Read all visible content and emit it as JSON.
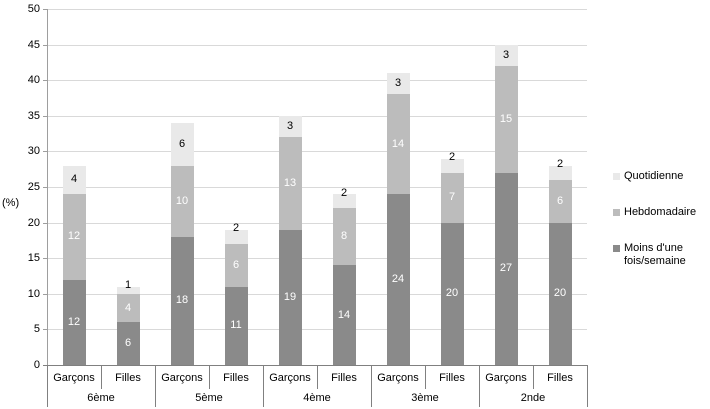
{
  "chart_data": {
    "type": "bar",
    "stacked": true,
    "ylabel": "(%)",
    "ylim": [
      0,
      50
    ],
    "yticks": [
      0,
      5,
      10,
      15,
      20,
      25,
      30,
      35,
      40,
      45,
      50
    ],
    "grid": true,
    "legend_position": "right",
    "groups": [
      "6ème",
      "5ème",
      "4ème",
      "3ème",
      "2nde"
    ],
    "sub_categories": [
      "Garçons",
      "Filles"
    ],
    "bar_columns": [
      "6ème Garçons",
      "6ème Filles",
      "5ème Garçons",
      "5ème Filles",
      "4ème Garçons",
      "4ème Filles",
      "3ème Garçons",
      "3ème Filles",
      "2nde Garçons",
      "2nde Filles"
    ],
    "series": [
      {
        "name": "Moins d'une fois/semaine",
        "color": "#8a8a8a",
        "label_color": "#ffffff",
        "values": [
          12,
          6,
          18,
          11,
          19,
          14,
          24,
          20,
          27,
          20
        ]
      },
      {
        "name": "Hebdomadaire",
        "color": "#bcbcbc",
        "label_color": "#ffffff",
        "values": [
          12,
          4,
          10,
          6,
          13,
          8,
          14,
          7,
          15,
          6
        ]
      },
      {
        "name": "Quotidienne",
        "color": "#e9e9e9",
        "label_color": "#000000",
        "values": [
          4,
          1,
          6,
          2,
          3,
          2,
          3,
          2,
          3,
          2
        ]
      }
    ],
    "legend_order": [
      2,
      1,
      0
    ],
    "colors": {
      "grid": "#d9d9d9",
      "y_axis": "#9e9e9e",
      "x_axis": "#808080",
      "background": "#ffffff"
    }
  }
}
